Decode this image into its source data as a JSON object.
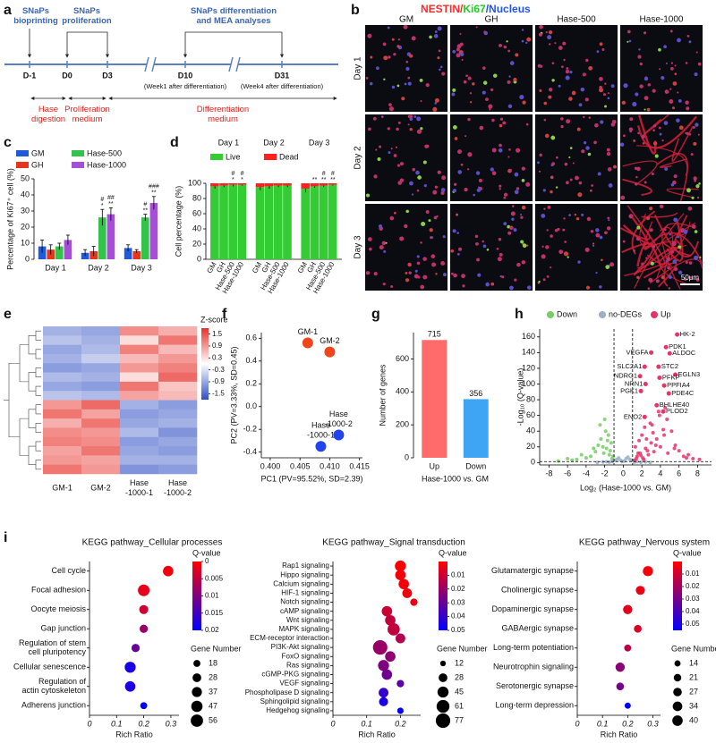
{
  "panel_labels": [
    "a",
    "b",
    "c",
    "d",
    "e",
    "f",
    "g",
    "h",
    "i"
  ],
  "timeline": {
    "phases": [
      [
        "SNaPs",
        "bioprinting"
      ],
      [
        "SNaPs",
        "proliferation"
      ],
      [
        "SNaPs differentiation",
        "and MEA analyses"
      ]
    ],
    "timepoints": [
      "D-1",
      "D0",
      "D3",
      "D10",
      "D31"
    ],
    "notes": [
      "(Week1 after differentiation)",
      "(Week4 after differentiation)"
    ],
    "media": [
      [
        "Hase",
        "digestion"
      ],
      [
        "Proliferation",
        "medium"
      ],
      [
        "Differentiation",
        "medium"
      ]
    ]
  },
  "images": {
    "title": [
      {
        "text": "NESTIN/",
        "color": "#ff2a2a"
      },
      {
        "text": "Ki67",
        "color": "#22cc22"
      },
      {
        "text": "/Nucleus",
        "color": "#2255ee"
      }
    ],
    "columns": [
      "GM",
      "GH",
      "Hase-500",
      "Hase-1000"
    ],
    "rows": [
      "Day 1",
      "Day 2",
      "Day 3"
    ],
    "scale_bar": "50μm"
  },
  "chart_data": [
    {
      "type": "bar",
      "y_label": "Percentage of Ki67⁺ cell (%)",
      "categories": [
        "Day 1",
        "Day 2",
        "Day 3"
      ],
      "ylim": [
        0,
        50
      ],
      "yticks": [
        0,
        10,
        20,
        30,
        40,
        50
      ],
      "legend": "top",
      "series": [
        {
          "name": "GM",
          "color": "#1f5bd8",
          "values": [
            8,
            4,
            7
          ],
          "errors": [
            4,
            2,
            2
          ]
        },
        {
          "name": "GH",
          "color": "#e8341c",
          "values": [
            6,
            5,
            5
          ],
          "errors": [
            3,
            3,
            1
          ]
        },
        {
          "name": "Hase-500",
          "color": "#33c24a",
          "values": [
            8,
            26,
            26
          ],
          "errors": [
            2,
            5,
            2
          ],
          "annotations": [
            null,
            [
              "#",
              "*"
            ],
            [
              "#",
              "**"
            ]
          ]
        },
        {
          "name": "Hase-1000",
          "color": "#a64fd6",
          "values": [
            12,
            28,
            35
          ],
          "errors": [
            3,
            4,
            4
          ],
          "annotations": [
            null,
            [
              "##",
              "**"
            ],
            [
              "###",
              "**"
            ]
          ]
        }
      ]
    },
    {
      "type": "stacked_bar",
      "y_label": "Cell percentage (%)",
      "groups": [
        "Day 1",
        "Day 2",
        "Day 3"
      ],
      "categories": [
        "GM",
        "GH",
        "Hase-500",
        "Hase-1000",
        "GM",
        "GH",
        "Hase-500",
        "Hase-1000",
        "GM",
        "GH",
        "Hase-500",
        "Hase-1000"
      ],
      "ylim": [
        0,
        100
      ],
      "yticks": [
        0,
        20,
        40,
        60,
        80,
        100
      ],
      "legend": "top",
      "series": [
        {
          "name": "Live",
          "color": "#33cc33",
          "values": [
            96,
            97,
            98,
            98,
            95,
            96,
            97,
            97,
            93,
            96,
            97,
            98
          ],
          "errors": [
            3,
            2,
            2,
            1,
            4,
            3,
            2,
            2,
            5,
            2,
            2,
            1
          ]
        },
        {
          "name": "Dead",
          "color": "#ff2020",
          "values": [
            4,
            3,
            2,
            2,
            5,
            4,
            3,
            3,
            7,
            4,
            3,
            2
          ]
        }
      ],
      "annotations": [
        null,
        null,
        [
          "#",
          "*"
        ],
        [
          "#",
          "*"
        ],
        null,
        null,
        null,
        null,
        null,
        [
          "**"
        ],
        [
          "#",
          "**"
        ],
        [
          "#",
          "**"
        ]
      ]
    },
    {
      "type": "heatmap",
      "title": "Z-score",
      "columns": [
        "GM-1",
        "GM-2",
        [
          "Hase",
          "-1000-1"
        ],
        [
          "Hase",
          "-1000-2"
        ]
      ],
      "zlim": [
        -1.8,
        1.8
      ],
      "zticks": [
        1.5,
        0.9,
        0.3,
        -0.3,
        -0.9,
        -1.5
      ],
      "colors": [
        "#2f4fc4",
        "#ffffff",
        "#e8312b"
      ],
      "values": [
        [
          -0.8,
          -0.9,
          1.0,
          0.7
        ],
        [
          -0.6,
          -0.8,
          0.3,
          1.2
        ],
        [
          -0.9,
          -0.7,
          1.1,
          0.6
        ],
        [
          -0.8,
          -0.5,
          0.6,
          0.9
        ],
        [
          -1.0,
          -0.9,
          0.9,
          1.1
        ],
        [
          -0.7,
          -0.8,
          0.3,
          1.3
        ],
        [
          -0.9,
          -1.0,
          1.2,
          0.5
        ],
        [
          -0.6,
          -0.7,
          0.8,
          0.6
        ],
        [
          0.9,
          1.3,
          -0.8,
          -1.0
        ],
        [
          1.2,
          0.8,
          -1.0,
          -0.9
        ],
        [
          0.7,
          1.2,
          -0.9,
          -0.8
        ],
        [
          1.0,
          0.9,
          -0.7,
          -1.1
        ],
        [
          1.1,
          1.0,
          -1.0,
          -0.9
        ],
        [
          0.8,
          1.2,
          -0.9,
          -1.0
        ],
        [
          0.9,
          0.8,
          -0.8,
          -0.8
        ],
        [
          1.2,
          0.9,
          -1.1,
          -1.0
        ]
      ]
    },
    {
      "type": "scatter",
      "x_label": "PC1 (PV=95.52%, SD=2.39)",
      "y_label": "PC2 (PV=3.33%, SD=0.45)",
      "xlim": [
        0.3985,
        0.4155
      ],
      "xticks": [
        {
          "value": 0.4,
          "label": "0.400"
        },
        {
          "value": 0.405,
          "label": "0.405"
        },
        {
          "value": 0.41,
          "label": "0.410"
        },
        {
          "value": 0.415,
          "label": "0.415"
        }
      ],
      "ylim": [
        -0.45,
        0.65
      ],
      "yticks": [
        -0.4,
        -0.2,
        {
          "value": 0,
          "label": "0.0"
        },
        0.2,
        0.4,
        0.6
      ],
      "points": [
        {
          "label": "GM-1",
          "x": 0.4063,
          "y": 0.56,
          "color": "#f0441b"
        },
        {
          "label": "GM-2",
          "x": 0.41,
          "y": 0.48,
          "color": "#f0441b"
        },
        {
          "label": [
            "Hase",
            "-1000-1"
          ],
          "x": 0.4085,
          "y": -0.35,
          "color": "#2244ee"
        },
        {
          "label": [
            "Hase",
            "-1000-2"
          ],
          "x": 0.4115,
          "y": -0.25,
          "color": "#2244ee"
        }
      ]
    },
    {
      "type": "bar",
      "y_label": "Number of genes",
      "x_label": "Hase-1000 vs. GM",
      "categories": [
        "Up",
        "Down"
      ],
      "values": [
        715,
        356
      ],
      "colors": [
        "#ff6b6b",
        "#3da5f4"
      ],
      "ylim": [
        0,
        760
      ],
      "yticks": [
        0,
        200,
        400,
        600
      ]
    },
    {
      "type": "volcano",
      "x_label": "Log₂ (Hase-1000 vs. GM)",
      "y_label": "-Log₁₀ (Q-value)",
      "xlim": [
        -9,
        9.5
      ],
      "xticks": [
        -8,
        -6,
        -4,
        -2,
        0,
        2,
        4,
        6,
        8
      ],
      "ylim": [
        -3,
        170
      ],
      "yticks": [
        0,
        20,
        40,
        60,
        80,
        100,
        120,
        140,
        160
      ],
      "thresholds": {
        "x": [
          -1,
          1
        ],
        "y": 1.3
      },
      "legend": "top",
      "series": [
        {
          "name": "Down",
          "color": "#77cc66",
          "x": [
            -1.2,
            -1.5,
            -1.8,
            -2.1,
            -2.4,
            -2.7,
            -3.0,
            -3.5,
            -4.0,
            -4.5,
            -5.0,
            -5.5,
            -6.0,
            -7.0,
            -1.3,
            -1.6,
            -1.9,
            -2.2,
            -1.4,
            -1.7,
            -2.0,
            -3.2,
            -2.5,
            -1.1
          ],
          "values": [
            5,
            10,
            18,
            12,
            30,
            22,
            14,
            8,
            6,
            10,
            4,
            3,
            5,
            2,
            25,
            35,
            40,
            20,
            15,
            28,
            55,
            18,
            48,
            8
          ]
        },
        {
          "name": "no-DEGs",
          "color": "#9ab0c4",
          "x": [
            -2.8,
            -2.2,
            -1.8,
            -1.5,
            -1.2,
            -0.9,
            -0.7,
            -0.5,
            -0.3,
            -0.1,
            0.1,
            0.3,
            0.5,
            0.7,
            0.9,
            1.2,
            1.5,
            1.9,
            2.4,
            2.9
          ],
          "values": [
            0.3,
            0.8,
            1.0,
            0.5,
            1.2,
            2.5,
            4,
            6,
            3,
            1.5,
            2,
            5,
            7,
            4,
            3,
            0.6,
            1.1,
            0.4,
            0.9,
            0.2
          ]
        },
        {
          "name": "Up",
          "color": "#e8336a",
          "x": [
            1.2,
            1.5,
            1.8,
            2.1,
            2.4,
            2.7,
            3.0,
            3.3,
            3.6,
            4.0,
            4.4,
            4.8,
            5.2,
            5.6,
            6.0,
            6.5,
            7.0,
            7.5,
            8.2,
            1.3,
            1.7,
            2.0,
            2.3,
            2.6,
            2.9,
            3.2,
            3.5,
            3.9,
            4.3,
            4.7,
            1.4,
            1.9,
            2.5,
            3.1,
            3.8,
            4.5,
            5.5,
            6.8,
            1.6,
            2.2
          ],
          "values": [
            3,
            8,
            12,
            6,
            18,
            10,
            25,
            14,
            30,
            20,
            35,
            12,
            40,
            22,
            15,
            8,
            10,
            5,
            4,
            20,
            28,
            35,
            45,
            15,
            50,
            38,
            22,
            60,
            42,
            55,
            5,
            9,
            30,
            48,
            65,
            70,
            18,
            6,
            12,
            4
          ]
        }
      ],
      "labeled": [
        {
          "name": "HK-2",
          "x": 5.8,
          "y": 163
        },
        {
          "name": "PDK1",
          "x": 4.6,
          "y": 147
        },
        {
          "name": "ALDOC",
          "x": 5.0,
          "y": 139
        },
        {
          "name": "VEGFA",
          "x": 3.0,
          "y": 140
        },
        {
          "name": "SLC2A1",
          "x": 2.3,
          "y": 122
        },
        {
          "name": "STC2",
          "x": 3.8,
          "y": 122
        },
        {
          "name": "EGLN3",
          "x": 5.6,
          "y": 112
        },
        {
          "name": "NDRG1",
          "x": 1.8,
          "y": 110
        },
        {
          "name": "PFKP",
          "x": 3.9,
          "y": 108
        },
        {
          "name": "NRN1",
          "x": 2.4,
          "y": 100
        },
        {
          "name": "PPFIA4",
          "x": 4.4,
          "y": 98
        },
        {
          "name": "PGK1",
          "x": 1.9,
          "y": 91
        },
        {
          "name": "PDE4C",
          "x": 4.9,
          "y": 88
        },
        {
          "name": "BHLHE40",
          "x": 3.6,
          "y": 73
        },
        {
          "name": "PLOD2",
          "x": 4.3,
          "y": 65
        },
        {
          "name": "ENO2",
          "x": 2.3,
          "y": 58
        }
      ]
    },
    {
      "type": "dot",
      "title": "KEGG pathway_Cellular processes",
      "x_label": "Rich Ratio",
      "xlim": [
        0,
        0.33
      ],
      "xticks": [
        0,
        0.1,
        0.2,
        0.3
      ],
      "categories": [
        "Cell cycle",
        "Focal adhesion",
        "Oocyte meiosis",
        "Gap junction",
        [
          "Regulation of stem",
          "cell pluripotency"
        ],
        "Cellular senescence",
        [
          "Regulation of",
          "actin cytoskeleton"
        ],
        "Adherens junction"
      ],
      "values": [
        0.29,
        0.2,
        0.2,
        0.2,
        0.17,
        0.15,
        0.15,
        0.2
      ],
      "sizes": [
        40,
        50,
        30,
        25,
        25,
        45,
        40,
        18
      ],
      "qvalues": [
        0.001,
        0.002,
        0.004,
        0.008,
        0.012,
        0.018,
        0.018,
        0.02
      ],
      "colorbar": {
        "title": "Q-value",
        "lim": [
          0,
          0.02
        ],
        "ticks": [
          0,
          0.005,
          0.01,
          0.015,
          0.02
        ],
        "colors": [
          "#ff0000",
          "#0000ff"
        ]
      },
      "size_legend": {
        "title": "Gene Number",
        "values": [
          18,
          28,
          37,
          47,
          56
        ]
      }
    },
    {
      "type": "dot",
      "title": "KEGG pathway_Signal transduction",
      "x_label": "Rich Ratio",
      "xlim": [
        0,
        0.26
      ],
      "xticks": [
        0,
        0.1,
        0.2
      ],
      "categories": [
        "Rap1 signaling",
        "Hippo signaling",
        "Calcium signaling",
        "HIF-1 signaling",
        "Notch signaling",
        "cAMP signaling",
        "Wnt signaling",
        "MAPK signaling",
        "ECM-receptor interaction",
        "PI3K-Akt signaling",
        "FoxO signaling",
        "Ras signaling",
        "cGMP-PKG signaling",
        "VEGF signaling",
        "Phospholipase D signaling",
        "Sphingolipid signaling",
        "Hedgehog signaling"
      ],
      "values": [
        0.2,
        0.2,
        0.21,
        0.22,
        0.24,
        0.16,
        0.17,
        0.18,
        0.2,
        0.14,
        0.17,
        0.15,
        0.16,
        0.2,
        0.15,
        0.15,
        0.2
      ],
      "sizes": [
        45,
        40,
        40,
        35,
        20,
        40,
        40,
        55,
        35,
        77,
        40,
        45,
        40,
        20,
        35,
        30,
        15
      ],
      "qvalues": [
        0.001,
        0.002,
        0.002,
        0.003,
        0.004,
        0.01,
        0.012,
        0.012,
        0.015,
        0.02,
        0.022,
        0.025,
        0.028,
        0.032,
        0.04,
        0.045,
        0.05
      ],
      "colorbar": {
        "title": "Q-value",
        "lim": [
          0,
          0.05
        ],
        "ticks": [
          0.01,
          0.02,
          0.03,
          0.04,
          0.05
        ],
        "colors": [
          "#ff0000",
          "#0000ff"
        ]
      },
      "size_legend": {
        "title": "Gene Number",
        "values": [
          12,
          28,
          45,
          61,
          77
        ]
      }
    },
    {
      "type": "dot",
      "title": "KEGG pathway_Nervous system",
      "x_label": "Rich Ratio",
      "xlim": [
        0,
        0.33
      ],
      "xticks": [
        0,
        0.1,
        0.2,
        0.3
      ],
      "categories": [
        "Glutamatergic synapse",
        "Cholinergic synapse",
        "Dopaminergic synapse",
        "GABAergic synapse",
        "Long-term potentiation",
        "Neurotrophin signaling",
        "Serotonergic synapse",
        "Long-term depression"
      ],
      "values": [
        0.28,
        0.25,
        0.2,
        0.24,
        0.2,
        0.17,
        0.17,
        0.2
      ],
      "sizes": [
        38,
        30,
        32,
        22,
        18,
        32,
        22,
        14
      ],
      "qvalues": [
        0.002,
        0.004,
        0.006,
        0.008,
        0.015,
        0.025,
        0.03,
        0.055
      ],
      "colorbar": {
        "title": "Q-value",
        "lim": [
          0,
          0.055
        ],
        "ticks": [
          0.01,
          0.02,
          0.03,
          0.04,
          0.05
        ],
        "colors": [
          "#ff0000",
          "#0000ff"
        ]
      },
      "size_legend": {
        "title": "Gene Number",
        "values": [
          14,
          21,
          27,
          34,
          40
        ]
      }
    }
  ]
}
